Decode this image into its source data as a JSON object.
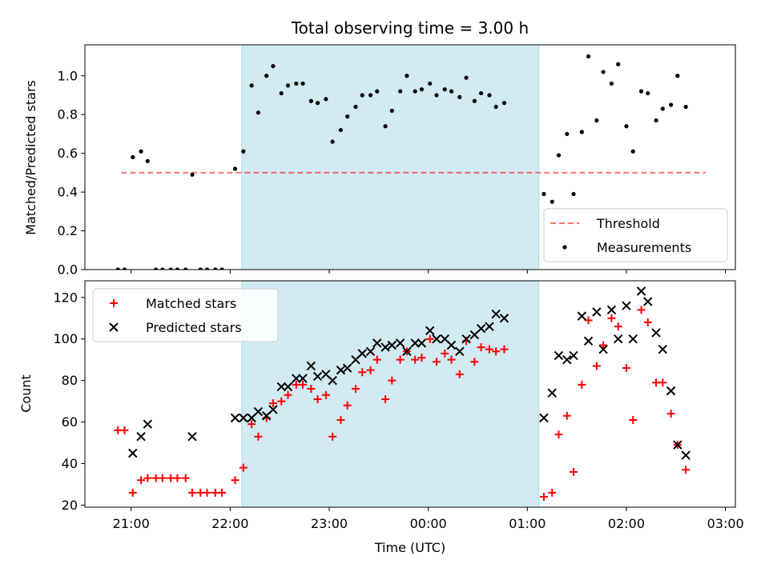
{
  "title": "Total observing time = 3.00 h",
  "colors": {
    "shade": "#add8e6",
    "threshold": "#ff0000",
    "measurements": "#000000",
    "matched": "#ff0000",
    "predicted": "#000000"
  },
  "chart_data": [
    {
      "type": "scatter",
      "panel": "top",
      "title": "Total observing time = 3.00 h",
      "ylabel": "Matched/Predicted stars",
      "xlabel": "",
      "xlim": [
        "20:32",
        "03:06"
      ],
      "ylim": [
        0,
        1.16
      ],
      "yticks": [
        0.0,
        0.2,
        0.4,
        0.6,
        0.8,
        1.0
      ],
      "ytick_labels": [
        "0.0",
        "0.2",
        "0.4",
        "0.6",
        "0.8",
        "1.0"
      ],
      "shaded_interval": [
        "22:07",
        "01:07"
      ],
      "legend": {
        "position": "lower right",
        "entries": [
          "Threshold",
          "Measurements"
        ]
      },
      "threshold": {
        "name": "Threshold",
        "y": 0.5,
        "x_range": [
          "20:54",
          "02:48"
        ],
        "style": "dashed"
      },
      "series": [
        {
          "name": "Measurements",
          "marker": "dot",
          "points": [
            [
              "20:52",
              0.0
            ],
            [
              "20:56",
              0.0
            ],
            [
              "21:01",
              0.58
            ],
            [
              "21:06",
              0.61
            ],
            [
              "21:10",
              0.56
            ],
            [
              "21:15",
              0.0
            ],
            [
              "21:19",
              0.0
            ],
            [
              "21:24",
              0.0
            ],
            [
              "21:28",
              0.0
            ],
            [
              "21:33",
              0.0
            ],
            [
              "21:37",
              0.49
            ],
            [
              "21:42",
              0.0
            ],
            [
              "21:46",
              0.0
            ],
            [
              "21:51",
              0.0
            ],
            [
              "21:55",
              0.0
            ],
            [
              "22:03",
              0.52
            ],
            [
              "22:08",
              0.61
            ],
            [
              "22:13",
              0.95
            ],
            [
              "22:17",
              0.81
            ],
            [
              "22:22",
              1.0
            ],
            [
              "22:26",
              1.05
            ],
            [
              "22:31",
              0.91
            ],
            [
              "22:35",
              0.95
            ],
            [
              "22:40",
              0.96
            ],
            [
              "22:44",
              0.96
            ],
            [
              "22:49",
              0.87
            ],
            [
              "22:53",
              0.86
            ],
            [
              "22:58",
              0.88
            ],
            [
              "23:02",
              0.66
            ],
            [
              "23:07",
              0.72
            ],
            [
              "23:11",
              0.79
            ],
            [
              "23:16",
              0.84
            ],
            [
              "23:20",
              0.9
            ],
            [
              "23:25",
              0.9
            ],
            [
              "23:29",
              0.92
            ],
            [
              "23:34",
              0.74
            ],
            [
              "23:38",
              0.82
            ],
            [
              "23:43",
              0.92
            ],
            [
              "23:47",
              1.0
            ],
            [
              "23:52",
              0.92
            ],
            [
              "23:56",
              0.93
            ],
            [
              "00:01",
              0.96
            ],
            [
              "00:05",
              0.9
            ],
            [
              "00:10",
              0.93
            ],
            [
              "00:14",
              0.92
            ],
            [
              "00:19",
              0.89
            ],
            [
              "00:23",
              0.99
            ],
            [
              "00:28",
              0.87
            ],
            [
              "00:32",
              0.91
            ],
            [
              "00:37",
              0.9
            ],
            [
              "00:41",
              0.84
            ],
            [
              "00:46",
              0.86
            ],
            [
              "01:10",
              0.39
            ],
            [
              "01:15",
              0.35
            ],
            [
              "01:19",
              0.59
            ],
            [
              "01:24",
              0.7
            ],
            [
              "01:28",
              0.39
            ],
            [
              "01:33",
              0.71
            ],
            [
              "01:37",
              1.1
            ],
            [
              "01:42",
              0.77
            ],
            [
              "01:46",
              1.02
            ],
            [
              "01:51",
              0.96
            ],
            [
              "01:55",
              1.06
            ],
            [
              "02:00",
              0.74
            ],
            [
              "02:04",
              0.61
            ],
            [
              "02:09",
              0.92
            ],
            [
              "02:13",
              0.91
            ],
            [
              "02:18",
              0.77
            ],
            [
              "02:22",
              0.83
            ],
            [
              "02:27",
              0.85
            ],
            [
              "02:31",
              1.0
            ],
            [
              "02:36",
              0.84
            ]
          ]
        }
      ]
    },
    {
      "type": "scatter",
      "panel": "bottom",
      "title": "",
      "ylabel": "Count",
      "xlabel": "Time (UTC)",
      "xlim": [
        "20:32",
        "03:06"
      ],
      "ylim": [
        19,
        128
      ],
      "yticks": [
        20,
        40,
        60,
        80,
        100,
        120
      ],
      "ytick_labels": [
        "20",
        "40",
        "60",
        "80",
        "100",
        "120"
      ],
      "xticks": [
        "21:00",
        "22:00",
        "23:00",
        "00:00",
        "01:00",
        "02:00",
        "03:00"
      ],
      "xtick_labels": [
        "21:00",
        "22:00",
        "23:00",
        "00:00",
        "01:00",
        "02:00",
        "03:00"
      ],
      "shaded_interval": [
        "22:07",
        "01:07"
      ],
      "legend": {
        "position": "upper left",
        "entries": [
          "Matched stars",
          "Predicted stars"
        ]
      },
      "series": [
        {
          "name": "Matched stars",
          "marker": "plus",
          "points": [
            [
              "20:52",
              56
            ],
            [
              "20:56",
              56
            ],
            [
              "21:01",
              26
            ],
            [
              "21:06",
              32
            ],
            [
              "21:10",
              33
            ],
            [
              "21:15",
              33
            ],
            [
              "21:19",
              33
            ],
            [
              "21:24",
              33
            ],
            [
              "21:28",
              33
            ],
            [
              "21:33",
              33
            ],
            [
              "21:37",
              26
            ],
            [
              "21:42",
              26
            ],
            [
              "21:46",
              26
            ],
            [
              "21:51",
              26
            ],
            [
              "21:55",
              26
            ],
            [
              "22:03",
              32
            ],
            [
              "22:08",
              38
            ],
            [
              "22:13",
              59
            ],
            [
              "22:17",
              53
            ],
            [
              "22:22",
              62
            ],
            [
              "22:26",
              69
            ],
            [
              "22:31",
              70
            ],
            [
              "22:35",
              73
            ],
            [
              "22:40",
              78
            ],
            [
              "22:44",
              78
            ],
            [
              "22:49",
              76
            ],
            [
              "22:53",
              71
            ],
            [
              "22:58",
              73
            ],
            [
              "23:02",
              53
            ],
            [
              "23:07",
              61
            ],
            [
              "23:11",
              68
            ],
            [
              "23:16",
              76
            ],
            [
              "23:20",
              84
            ],
            [
              "23:25",
              85
            ],
            [
              "23:29",
              90
            ],
            [
              "23:34",
              71
            ],
            [
              "23:38",
              80
            ],
            [
              "23:43",
              90
            ],
            [
              "23:47",
              94
            ],
            [
              "23:52",
              90
            ],
            [
              "23:56",
              91
            ],
            [
              "00:01",
              100
            ],
            [
              "00:05",
              89
            ],
            [
              "00:10",
              93
            ],
            [
              "00:14",
              90
            ],
            [
              "00:19",
              83
            ],
            [
              "00:23",
              99
            ],
            [
              "00:28",
              89
            ],
            [
              "00:32",
              96
            ],
            [
              "00:37",
              95
            ],
            [
              "00:41",
              94
            ],
            [
              "00:46",
              95
            ],
            [
              "01:10",
              24
            ],
            [
              "01:15",
              26
            ],
            [
              "01:19",
              54
            ],
            [
              "01:24",
              63
            ],
            [
              "01:28",
              36
            ],
            [
              "01:33",
              78
            ],
            [
              "01:37",
              109
            ],
            [
              "01:42",
              87
            ],
            [
              "01:46",
              97
            ],
            [
              "01:51",
              110
            ],
            [
              "01:55",
              106
            ],
            [
              "02:00",
              86
            ],
            [
              "02:04",
              61
            ],
            [
              "02:09",
              114
            ],
            [
              "02:13",
              108
            ],
            [
              "02:18",
              79
            ],
            [
              "02:22",
              79
            ],
            [
              "02:27",
              64
            ],
            [
              "02:31",
              49
            ],
            [
              "02:36",
              37
            ]
          ]
        },
        {
          "name": "Predicted stars",
          "marker": "x",
          "points": [
            [
              "21:01",
              45
            ],
            [
              "21:06",
              53
            ],
            [
              "21:10",
              59
            ],
            [
              "21:37",
              53
            ],
            [
              "22:03",
              62
            ],
            [
              "22:08",
              62
            ],
            [
              "22:13",
              62
            ],
            [
              "22:17",
              65
            ],
            [
              "22:22",
              63
            ],
            [
              "22:26",
              66
            ],
            [
              "22:31",
              77
            ],
            [
              "22:35",
              77
            ],
            [
              "22:40",
              81
            ],
            [
              "22:44",
              81
            ],
            [
              "22:49",
              87
            ],
            [
              "22:53",
              82
            ],
            [
              "22:58",
              83
            ],
            [
              "23:02",
              80
            ],
            [
              "23:07",
              85
            ],
            [
              "23:11",
              86
            ],
            [
              "23:16",
              90
            ],
            [
              "23:20",
              93
            ],
            [
              "23:25",
              94
            ],
            [
              "23:29",
              98
            ],
            [
              "23:34",
              96
            ],
            [
              "23:38",
              97
            ],
            [
              "23:43",
              98
            ],
            [
              "23:47",
              94
            ],
            [
              "23:52",
              98
            ],
            [
              "23:56",
              98
            ],
            [
              "00:01",
              104
            ],
            [
              "00:05",
              100
            ],
            [
              "00:10",
              100
            ],
            [
              "00:14",
              97
            ],
            [
              "00:19",
              94
            ],
            [
              "00:23",
              100
            ],
            [
              "00:28",
              102
            ],
            [
              "00:32",
              105
            ],
            [
              "00:37",
              106
            ],
            [
              "00:41",
              112
            ],
            [
              "00:46",
              110
            ],
            [
              "01:10",
              62
            ],
            [
              "01:15",
              74
            ],
            [
              "01:19",
              92
            ],
            [
              "01:24",
              90
            ],
            [
              "01:28",
              92
            ],
            [
              "01:33",
              111
            ],
            [
              "01:37",
              99
            ],
            [
              "01:42",
              113
            ],
            [
              "01:46",
              95
            ],
            [
              "01:51",
              114
            ],
            [
              "01:55",
              100
            ],
            [
              "02:00",
              116
            ],
            [
              "02:04",
              100
            ],
            [
              "02:09",
              123
            ],
            [
              "02:13",
              118
            ],
            [
              "02:18",
              103
            ],
            [
              "02:22",
              95
            ],
            [
              "02:27",
              75
            ],
            [
              "02:31",
              49
            ],
            [
              "02:36",
              44
            ]
          ]
        }
      ]
    }
  ]
}
